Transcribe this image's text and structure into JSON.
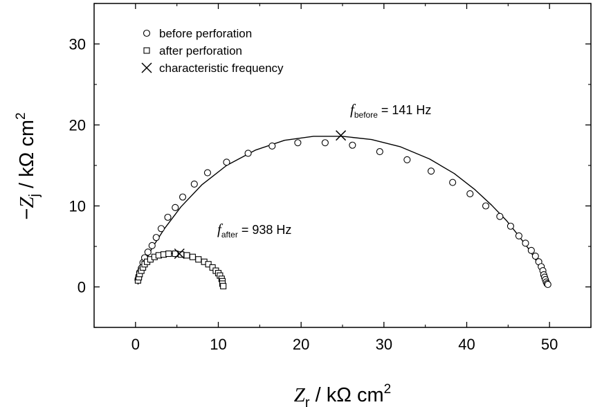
{
  "chart_data": {
    "type": "scatter",
    "xlabel": {
      "var": "Z",
      "sub": "r",
      "unit": " / kΩ cm",
      "sup": "2"
    },
    "ylabel": {
      "prefix": "−",
      "var": "Z",
      "sub": "j",
      "unit": " / kΩ cm",
      "sup": "2"
    },
    "xlim": [
      -5,
      55
    ],
    "ylim": [
      -5,
      35
    ],
    "xticks": [
      "0",
      "10",
      "20",
      "30",
      "40",
      "50"
    ],
    "xtick_values": [
      0,
      10,
      20,
      30,
      40,
      50
    ],
    "yticks": [
      "0",
      "10",
      "20",
      "30"
    ],
    "ytick_values": [
      0,
      10,
      20,
      30
    ],
    "grid": false,
    "legend_position": "top-left",
    "legend": [
      {
        "marker": "circle",
        "label": "before perforation"
      },
      {
        "marker": "square",
        "label": "after perforation"
      },
      {
        "marker": "cross",
        "label": "characteristic frequency"
      }
    ],
    "series": [
      {
        "name": "before perforation",
        "marker": "circle",
        "x": [
          0.3,
          0.4,
          0.5,
          0.7,
          0.9,
          1.1,
          1.5,
          2.0,
          2.5,
          3.1,
          3.9,
          4.8,
          5.7,
          7.1,
          8.7,
          11.0,
          13.6,
          16.5,
          19.6,
          22.9,
          26.2,
          29.5,
          32.8,
          35.7,
          38.3,
          40.4,
          42.3,
          44.0,
          45.3,
          46.3,
          47.1,
          47.8,
          48.3,
          48.7,
          49.0,
          49.2,
          49.3,
          49.4,
          49.5,
          49.6,
          49.7,
          49.8
        ],
        "y": [
          0.9,
          1.3,
          1.8,
          2.3,
          3.0,
          3.6,
          4.3,
          5.1,
          6.1,
          7.2,
          8.6,
          9.8,
          11.1,
          12.7,
          14.1,
          15.4,
          16.5,
          17.4,
          17.8,
          17.8,
          17.5,
          16.7,
          15.7,
          14.3,
          12.9,
          11.5,
          10.0,
          8.7,
          7.5,
          6.3,
          5.4,
          4.5,
          3.8,
          3.1,
          2.5,
          2.0,
          1.5,
          1.2,
          0.9,
          0.6,
          0.4,
          0.3
        ]
      },
      {
        "name": "after perforation",
        "marker": "square",
        "x": [
          0.3,
          0.4,
          0.5,
          0.7,
          0.9,
          1.1,
          1.4,
          1.8,
          2.3,
          2.8,
          3.4,
          4.0,
          4.8,
          5.5,
          6.2,
          6.9,
          7.6,
          8.3,
          8.8,
          9.3,
          9.7,
          10.0,
          10.2,
          10.4,
          10.5,
          10.5,
          10.6
        ],
        "y": [
          0.8,
          1.2,
          1.6,
          2.0,
          2.4,
          2.8,
          3.1,
          3.4,
          3.7,
          3.9,
          4.0,
          4.1,
          4.1,
          4.0,
          3.9,
          3.7,
          3.4,
          3.1,
          2.8,
          2.4,
          2.0,
          1.7,
          1.4,
          1.0,
          0.7,
          0.4,
          0.1
        ]
      },
      {
        "name": "before perforation fit",
        "type": "line",
        "x": [
          0.3,
          0.5,
          1.0,
          2.0,
          3.5,
          5.5,
          8.0,
          11.0,
          14.5,
          18.0,
          21.5,
          25.0,
          28.5,
          32.0,
          35.5,
          38.5,
          41.0,
          43.0,
          44.8,
          46.2,
          47.4,
          48.3,
          48.9,
          49.4,
          49.7,
          49.9,
          50.0
        ],
        "y": [
          0.3,
          1.5,
          2.8,
          4.8,
          7.2,
          9.9,
          12.6,
          15.0,
          16.9,
          18.1,
          18.6,
          18.6,
          18.2,
          17.3,
          15.8,
          14.0,
          12.0,
          10.1,
          8.2,
          6.4,
          4.8,
          3.4,
          2.3,
          1.4,
          0.7,
          0.3,
          0.2
        ]
      },
      {
        "name": "after perforation fit",
        "type": "line",
        "x": [
          0.3,
          0.6,
          1.0,
          1.6,
          2.3,
          3.1,
          4.0,
          5.0,
          6.0,
          7.0,
          7.9,
          8.7,
          9.4,
          9.9,
          10.3,
          10.5,
          10.6
        ],
        "y": [
          0.5,
          1.6,
          2.3,
          3.0,
          3.5,
          3.9,
          4.1,
          4.2,
          4.1,
          3.8,
          3.4,
          2.8,
          2.1,
          1.5,
          0.9,
          0.4,
          0.0
        ]
      }
    ],
    "characteristic_points": [
      {
        "x": 24.8,
        "y": 18.7
      },
      {
        "x": 5.3,
        "y": 4.1
      }
    ],
    "annotations": [
      {
        "var": "f",
        "sub": "before",
        "text": " = 141 Hz"
      },
      {
        "var": "f",
        "sub": "after",
        "text": " = 938 Hz"
      }
    ]
  }
}
